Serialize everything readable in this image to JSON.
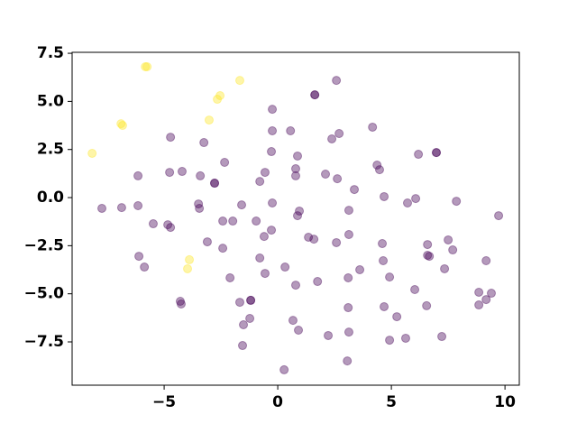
{
  "chart_data": {
    "type": "scatter",
    "xlim": [
      -9.05,
      10.63
    ],
    "ylim": [
      -9.75,
      7.55
    ],
    "xticks": [
      {
        "value": -5,
        "label": "−5"
      },
      0,
      5,
      10
    ],
    "yticks": [
      {
        "value": 7.5,
        "label": "7.5"
      },
      {
        "value": 5,
        "label": "5.0"
      },
      {
        "value": 2.5,
        "label": "2.5"
      },
      {
        "value": 0,
        "label": "0.0"
      },
      {
        "value": -2.5,
        "label": "−2.5"
      },
      {
        "value": -5,
        "label": "−5.0"
      },
      {
        "value": -7.5,
        "label": "−7.5"
      }
    ],
    "alpha": 0.4,
    "series": [
      {
        "color": "#440154",
        "x": [
          2.58,
          1.63,
          1.63,
          -0.24,
          4.17,
          2.7,
          0.56,
          -0.24,
          2.38,
          -4.72,
          -3.25,
          -0.28,
          0.87,
          6.98,
          6.98,
          6.19,
          4.37,
          4.48,
          -2.34,
          -6.15,
          -4.76,
          -4.21,
          -0.56,
          0.79,
          0.79,
          2.1,
          2.62,
          -3.41,
          -2.78,
          -2.78,
          -0.79,
          3.37,
          4.68,
          6.07,
          5.71,
          7.86,
          -7.74,
          -6.87,
          -6.15,
          -3.49,
          -3.45,
          -1.59,
          -0.24,
          0.95,
          0.87,
          3.13,
          9.72,
          -5.48,
          -4.84,
          -4.72,
          -2.42,
          -1.98,
          -0.95,
          -0.28,
          3.13,
          1.35,
          1.59,
          -0.6,
          2.58,
          -3.1,
          -2.42,
          4.6,
          7.5,
          6.59,
          7.7,
          -6.11,
          6.67,
          6.59,
          -5.87,
          -0.79,
          4.64,
          9.17,
          0.32,
          -0.56,
          3.61,
          3.1,
          4.92,
          7.34,
          -2.1,
          1.75,
          0.79,
          6.03,
          8.85,
          9.4,
          9.17,
          8.85,
          -4.29,
          -4.25,
          -1.67,
          -1.19,
          -1.19,
          3.1,
          4.68,
          6.55,
          5.24,
          -1.23,
          0.67,
          -1.51,
          0.91,
          3.13,
          2.22,
          4.92,
          5.63,
          7.22,
          -1.55,
          3.06,
          0.28
        ],
        "y": [
          6.09,
          5.34,
          5.34,
          4.59,
          3.66,
          3.33,
          3.47,
          3.47,
          3.05,
          3.14,
          2.86,
          2.39,
          2.16,
          2.34,
          2.34,
          2.25,
          1.69,
          1.45,
          1.83,
          1.13,
          1.31,
          1.36,
          1.31,
          1.5,
          1.13,
          1.22,
          0.98,
          1.13,
          0.75,
          0.75,
          0.84,
          0.42,
          0.05,
          -0.05,
          -0.28,
          -0.19,
          -0.56,
          -0.52,
          -0.42,
          -0.33,
          -0.56,
          -0.38,
          -0.28,
          -0.7,
          -0.94,
          -0.66,
          -0.94,
          -1.36,
          -1.41,
          -1.55,
          -1.22,
          -1.22,
          -1.22,
          -1.69,
          -1.92,
          -2.06,
          -2.16,
          -2.02,
          -2.34,
          -2.3,
          -2.63,
          -2.39,
          -2.2,
          -2.44,
          -2.72,
          -3.05,
          -3.05,
          -3.0,
          -3.61,
          -3.14,
          -3.28,
          -3.28,
          -3.61,
          -3.94,
          -3.75,
          -4.17,
          -4.13,
          -3.7,
          -4.17,
          -4.36,
          -4.55,
          -4.78,
          -4.92,
          -4.97,
          -5.3,
          -5.58,
          -5.39,
          -5.53,
          -5.44,
          -5.34,
          -5.34,
          -5.72,
          -5.67,
          -5.62,
          -6.19,
          -6.28,
          -6.38,
          -6.61,
          -6.89,
          -6.99,
          -7.17,
          -7.41,
          -7.31,
          -7.22,
          -7.69,
          -8.49,
          -8.95
        ]
      },
      {
        "color": "#fde725",
        "x": [
          -5.83,
          -5.75,
          -1.67,
          -2.54,
          -2.66,
          -3.02,
          -6.9,
          -6.83,
          -8.17,
          -3.89,
          -3.97
        ],
        "y": [
          6.8,
          6.8,
          6.09,
          5.3,
          5.11,
          4.03,
          3.84,
          3.75,
          2.3,
          -3.23,
          -3.7
        ]
      }
    ]
  }
}
